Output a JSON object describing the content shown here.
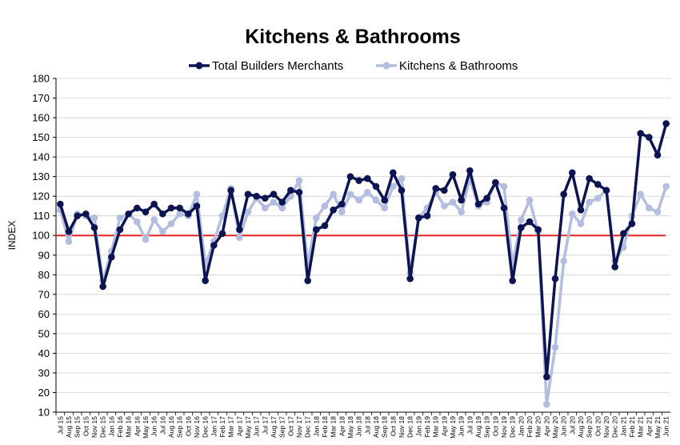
{
  "chart_data": {
    "type": "line",
    "title": "Kitchens & Bathrooms",
    "ylabel": "INDEX",
    "xlabel": "",
    "ylim": [
      10,
      180
    ],
    "ytick_step": 10,
    "grid": true,
    "legend_position": "top",
    "reference_line": {
      "y": 100,
      "color": "#e8231f"
    },
    "categories": [
      "Jul 15",
      "Aug 15",
      "Sep 15",
      "Oct 15",
      "Nov 15",
      "Dec 15",
      "Jan 16",
      "Feb 16",
      "Mar 16",
      "Apr 16",
      "May 16",
      "Jun 16",
      "Jul 16",
      "Aug 16",
      "Sep 16",
      "Oct 16",
      "Nov 16",
      "Dec 16",
      "Jan 17",
      "Feb 17",
      "Mar 17",
      "Apr 17",
      "May 17",
      "Jun 17",
      "Jul 17",
      "Aug 17",
      "Sep 17",
      "Oct 17",
      "Nov 17",
      "Dec 17",
      "Jan 18",
      "Feb 18",
      "Mar 18",
      "Apr 18",
      "May 18",
      "Jun 18",
      "Jul 18",
      "Aug 18",
      "Sep 18",
      "Oct 18",
      "Nov 18",
      "Dec 18",
      "Jan 19",
      "Feb 19",
      "Mar 19",
      "Apr 19",
      "May 19",
      "Jun 19",
      "Jul 19",
      "Aug 19",
      "Sep 19",
      "Oct 19",
      "Nov 19",
      "Dec 19",
      "Jan 20",
      "Feb 20",
      "Mar 20",
      "Apr 20",
      "May 20",
      "Jun 20",
      "Jul 20",
      "Aug 20",
      "Sep 20",
      "Oct 20",
      "Nov 20",
      "Dec 20",
      "Jan 21",
      "Feb 21",
      "Mar 21",
      "Apr 21",
      "May 21",
      "Jun 21"
    ],
    "series": [
      {
        "name": "Total Builders Merchants",
        "color": "#0d1452",
        "values": [
          116,
          102,
          110,
          111,
          104,
          74,
          89,
          103,
          111,
          114,
          112,
          116,
          111,
          114,
          114,
          111,
          115,
          77,
          95,
          101,
          123,
          103,
          121,
          120,
          119,
          121,
          117,
          123,
          122,
          77,
          103,
          105,
          113,
          116,
          130,
          128,
          129,
          125,
          118,
          132,
          123,
          78,
          109,
          110,
          124,
          123,
          131,
          118,
          133,
          116,
          119,
          127,
          114,
          77,
          104,
          107,
          103,
          28,
          78,
          121,
          132,
          113,
          129,
          126,
          123,
          84,
          101,
          106,
          152,
          150,
          141,
          157
        ]
      },
      {
        "name": "Kitchens & Bathrooms",
        "color": "#b3bde0",
        "values": [
          113,
          97,
          111,
          110,
          109,
          77,
          92,
          109,
          111,
          107,
          98,
          108,
          102,
          106,
          111,
          110,
          121,
          85,
          97,
          110,
          124,
          99,
          112,
          119,
          114,
          117,
          114,
          120,
          128,
          85,
          109,
          115,
          121,
          112,
          121,
          118,
          122,
          118,
          114,
          125,
          129,
          81,
          109,
          114,
          122,
          115,
          117,
          112,
          129,
          115,
          117,
          127,
          125,
          85,
          108,
          118,
          102,
          14,
          43,
          87,
          111,
          106,
          117,
          119,
          123,
          87,
          94,
          110,
          121,
          114,
          112,
          125
        ]
      }
    ]
  }
}
